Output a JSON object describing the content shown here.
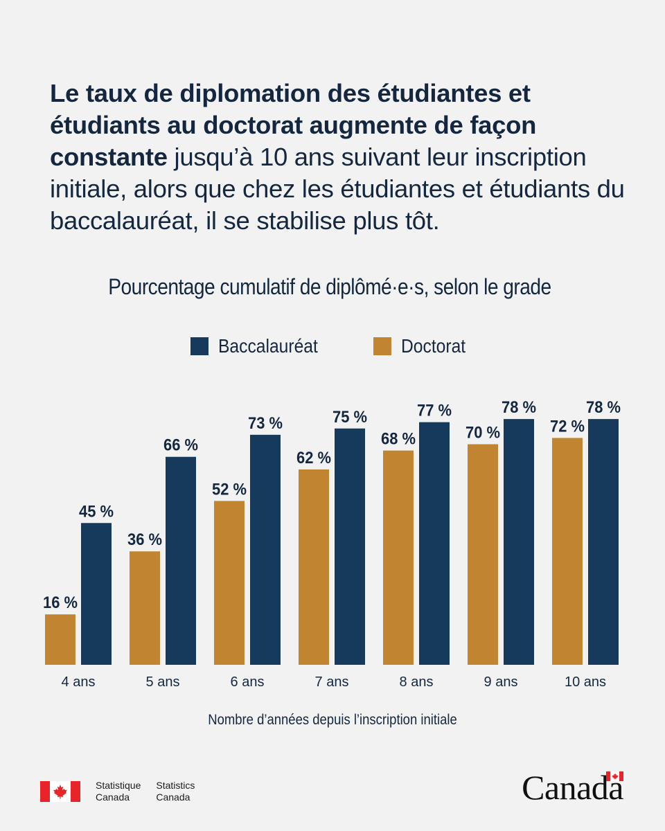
{
  "headline": {
    "bold": "Le taux de diplomation des étudiantes et étudiants au doctorat augmente de façon constante",
    "regular": " jusqu’à 10 ans suivant leur inscription initiale, alors que chez les étudiantes et étudiants du baccalauréat, il se stabilise plus tôt."
  },
  "chart_data": {
    "type": "bar",
    "title": "Pourcentage cumulatif de diplômé·e·s, selon le grade",
    "xlabel": "Nombre d’années depuis l’inscription initiale",
    "ylabel": "",
    "categories": [
      "4 ans",
      "5 ans",
      "6 ans",
      "7 ans",
      "8 ans",
      "9 ans",
      "10 ans"
    ],
    "series": [
      {
        "name": "Doctorat",
        "color": "#c18431",
        "values": [
          16,
          36,
          52,
          62,
          68,
          70,
          72
        ]
      },
      {
        "name": "Baccalauréat",
        "color": "#163a5c",
        "values": [
          45,
          66,
          73,
          75,
          77,
          78,
          78
        ]
      }
    ],
    "legend_order": [
      "Baccalauréat",
      "Doctorat"
    ],
    "value_suffix": " %",
    "ylim": [
      0,
      100
    ],
    "grid": false,
    "legend": "top-center"
  },
  "footer": {
    "org_fr": [
      "Statistique",
      "Canada"
    ],
    "org_en": [
      "Statistics",
      "Canada"
    ],
    "wordmark": "Canada"
  }
}
